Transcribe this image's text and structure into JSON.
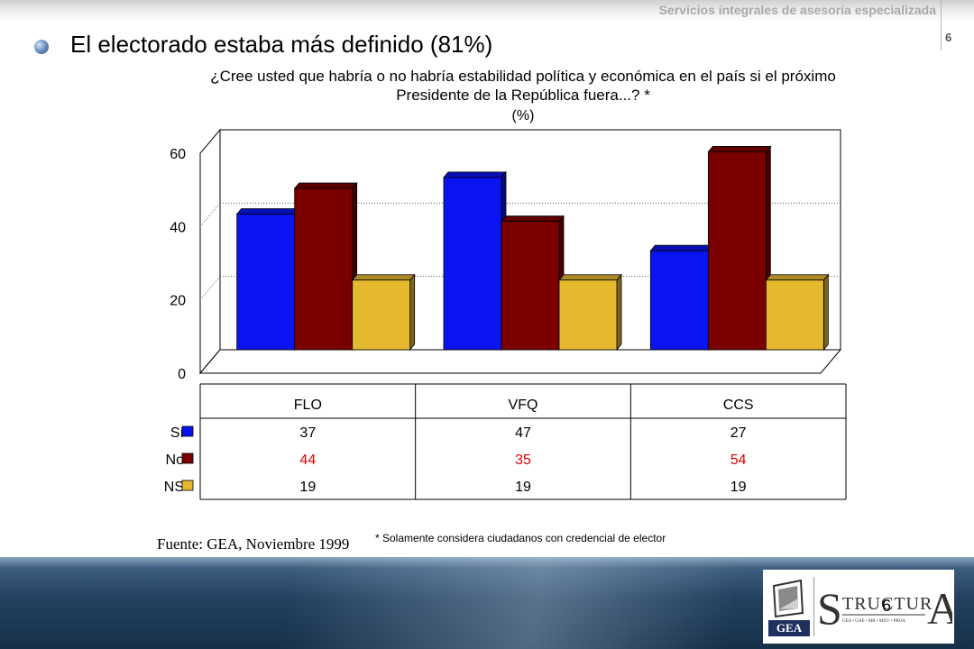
{
  "header": {
    "company": "Servicios integrales de asesoría especializada",
    "page_number": "6"
  },
  "title": "El electorado estaba más definido (81%)",
  "subtitle": "¿Cree usted que habría o no habría estabilidad política y económica en el país si el próximo Presidente de la República fuera...? *",
  "unit": "(%)",
  "chart_data": {
    "type": "bar",
    "title": "",
    "xlabel": "",
    "ylabel": "",
    "categories": [
      "FLO",
      "VFQ",
      "CCS"
    ],
    "series": [
      {
        "name": "Sí",
        "values": [
          37,
          47,
          27
        ],
        "color": "#0a14f0"
      },
      {
        "name": "No",
        "values": [
          44,
          35,
          54
        ],
        "color": "#7a0000"
      },
      {
        "name": "NS",
        "values": [
          19,
          19,
          19
        ],
        "color": "#e6b82e"
      }
    ],
    "ylim": [
      0,
      60
    ],
    "yticks": [
      0,
      20,
      40,
      60
    ],
    "grid": true,
    "three_d": true,
    "data_table": true,
    "highlight_series_text_color": {
      "No": "#dd0000"
    }
  },
  "source": "Fuente: GEA, Noviembre 1999",
  "footnote": "* Solamente considera ciudadanos con credencial de elector",
  "logo": {
    "gea": "GEA",
    "page_number": "6"
  }
}
